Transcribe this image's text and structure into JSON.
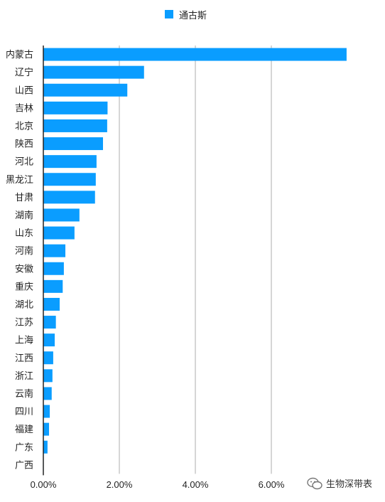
{
  "legend": {
    "label": "通古斯",
    "color": "#0a9dff"
  },
  "watermark": {
    "text": "生物深带表",
    "icon": "wechat-icon"
  },
  "chart_data": {
    "type": "bar",
    "orientation": "horizontal",
    "title": "",
    "xlabel": "",
    "ylabel": "",
    "xlim": [
      0,
      0.08
    ],
    "xticks": [
      0,
      0.02,
      0.04,
      0.06
    ],
    "xtick_labels": [
      "0.00%",
      "2.00%",
      "4.00%",
      "6.00%"
    ],
    "grid": "vertical",
    "legend_position": "top-center",
    "categories": [
      "内蒙古",
      "辽宁",
      "山西",
      "吉林",
      "北京",
      "陕西",
      "河北",
      "黑龙江",
      "甘肃",
      "湖南",
      "山东",
      "河南",
      "安徽",
      "重庆",
      "湖北",
      "江苏",
      "上海",
      "江西",
      "浙江",
      "云南",
      "四川",
      "福建",
      "广东",
      "广西"
    ],
    "series": [
      {
        "name": "通古斯",
        "color": "#0a9dff",
        "values": [
          0.0798,
          0.0265,
          0.0221,
          0.0169,
          0.0168,
          0.0157,
          0.014,
          0.0138,
          0.0136,
          0.0095,
          0.0082,
          0.0058,
          0.0054,
          0.0051,
          0.0043,
          0.0033,
          0.003,
          0.0026,
          0.0024,
          0.0022,
          0.0017,
          0.0015,
          0.0011,
          0.0001
        ]
      }
    ]
  }
}
